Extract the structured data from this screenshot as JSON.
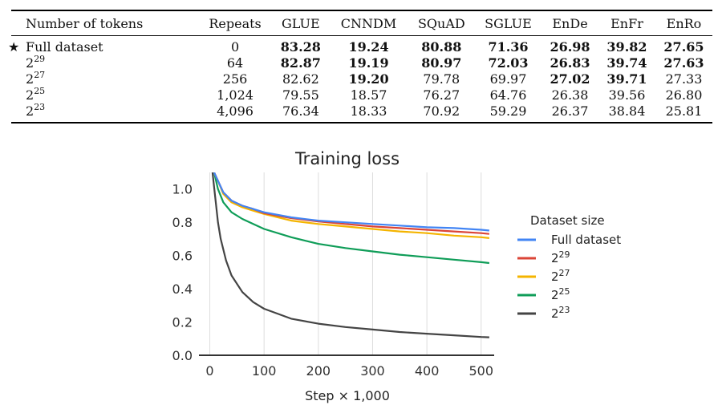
{
  "table": {
    "headers": [
      "Number of tokens",
      "Repeats",
      "GLUE",
      "CNNDM",
      "SQuAD",
      "SGLUE",
      "EnDe",
      "EnFr",
      "EnRo"
    ],
    "rows": [
      {
        "star": "★",
        "label": "Full dataset",
        "base": "",
        "exp": "",
        "values": [
          "0",
          "83.28",
          "19.24",
          "80.88",
          "71.36",
          "26.98",
          "39.82",
          "27.65"
        ],
        "bold": [
          false,
          true,
          true,
          true,
          true,
          true,
          true,
          true
        ]
      },
      {
        "star": "",
        "label": "",
        "base": "2",
        "exp": "29",
        "values": [
          "64",
          "82.87",
          "19.19",
          "80.97",
          "72.03",
          "26.83",
          "39.74",
          "27.63"
        ],
        "bold": [
          false,
          true,
          true,
          true,
          true,
          true,
          true,
          true
        ]
      },
      {
        "star": "",
        "label": "",
        "base": "2",
        "exp": "27",
        "values": [
          "256",
          "82.62",
          "19.20",
          "79.78",
          "69.97",
          "27.02",
          "39.71",
          "27.33"
        ],
        "bold": [
          false,
          false,
          true,
          false,
          false,
          true,
          true,
          false
        ]
      },
      {
        "star": "",
        "label": "",
        "base": "2",
        "exp": "25",
        "values": [
          "1,024",
          "79.55",
          "18.57",
          "76.27",
          "64.76",
          "26.38",
          "39.56",
          "26.80"
        ],
        "bold": [
          false,
          false,
          false,
          false,
          false,
          false,
          false,
          false
        ]
      },
      {
        "star": "",
        "label": "",
        "base": "2",
        "exp": "23",
        "values": [
          "4,096",
          "76.34",
          "18.33",
          "70.92",
          "59.29",
          "26.37",
          "38.84",
          "25.81"
        ],
        "bold": [
          false,
          false,
          false,
          false,
          false,
          false,
          false,
          false
        ]
      }
    ]
  },
  "chart_data": {
    "type": "line",
    "title": "Training loss",
    "xlabel": "Step × 1,000",
    "ylabel": "",
    "xlim": [
      -20,
      524
    ],
    "ylim": [
      0,
      1.1
    ],
    "xticks": [
      0,
      100,
      200,
      300,
      400,
      500
    ],
    "yticks": [
      0.0,
      0.2,
      0.4,
      0.6,
      0.8,
      1.0
    ],
    "grid": "vertical",
    "legend": {
      "title": "Dataset size",
      "placement": "right"
    },
    "series": [
      {
        "name": "Full dataset",
        "base": "",
        "exp": "",
        "color": "#4285f4",
        "points": [
          [
            8,
            1.1
          ],
          [
            15,
            1.05
          ],
          [
            25,
            0.98
          ],
          [
            40,
            0.93
          ],
          [
            60,
            0.9
          ],
          [
            80,
            0.88
          ],
          [
            100,
            0.86
          ],
          [
            150,
            0.83
          ],
          [
            200,
            0.81
          ],
          [
            250,
            0.8
          ],
          [
            300,
            0.79
          ],
          [
            350,
            0.78
          ],
          [
            400,
            0.77
          ],
          [
            450,
            0.765
          ],
          [
            500,
            0.755
          ],
          [
            515,
            0.75
          ]
        ]
      },
      {
        "name": "",
        "base": "2",
        "exp": "29",
        "color": "#db4437",
        "points": [
          [
            8,
            1.1
          ],
          [
            15,
            1.05
          ],
          [
            25,
            0.98
          ],
          [
            40,
            0.93
          ],
          [
            60,
            0.9
          ],
          [
            80,
            0.88
          ],
          [
            100,
            0.855
          ],
          [
            150,
            0.825
          ],
          [
            200,
            0.805
          ],
          [
            250,
            0.79
          ],
          [
            300,
            0.775
          ],
          [
            350,
            0.765
          ],
          [
            400,
            0.755
          ],
          [
            450,
            0.745
          ],
          [
            500,
            0.735
          ],
          [
            515,
            0.73
          ]
        ]
      },
      {
        "name": "",
        "base": "2",
        "exp": "27",
        "color": "#f4b400",
        "points": [
          [
            8,
            1.1
          ],
          [
            15,
            1.05
          ],
          [
            25,
            0.97
          ],
          [
            40,
            0.92
          ],
          [
            60,
            0.89
          ],
          [
            80,
            0.87
          ],
          [
            100,
            0.85
          ],
          [
            150,
            0.81
          ],
          [
            200,
            0.79
          ],
          [
            250,
            0.775
          ],
          [
            300,
            0.76
          ],
          [
            350,
            0.745
          ],
          [
            400,
            0.735
          ],
          [
            450,
            0.72
          ],
          [
            500,
            0.71
          ],
          [
            515,
            0.705
          ]
        ]
      },
      {
        "name": "",
        "base": "2",
        "exp": "25",
        "color": "#0f9d58",
        "points": [
          [
            8,
            1.1
          ],
          [
            15,
            1.0
          ],
          [
            25,
            0.92
          ],
          [
            40,
            0.86
          ],
          [
            60,
            0.82
          ],
          [
            80,
            0.79
          ],
          [
            100,
            0.76
          ],
          [
            150,
            0.71
          ],
          [
            200,
            0.67
          ],
          [
            250,
            0.645
          ],
          [
            300,
            0.625
          ],
          [
            350,
            0.605
          ],
          [
            400,
            0.59
          ],
          [
            450,
            0.575
          ],
          [
            500,
            0.56
          ],
          [
            515,
            0.555
          ]
        ]
      },
      {
        "name": "",
        "base": "2",
        "exp": "23",
        "color": "#444444",
        "points": [
          [
            5,
            1.1
          ],
          [
            10,
            0.95
          ],
          [
            15,
            0.8
          ],
          [
            20,
            0.7
          ],
          [
            30,
            0.57
          ],
          [
            40,
            0.48
          ],
          [
            60,
            0.38
          ],
          [
            80,
            0.32
          ],
          [
            100,
            0.28
          ],
          [
            150,
            0.22
          ],
          [
            200,
            0.19
          ],
          [
            250,
            0.17
          ],
          [
            300,
            0.155
          ],
          [
            350,
            0.14
          ],
          [
            400,
            0.13
          ],
          [
            450,
            0.12
          ],
          [
            500,
            0.11
          ],
          [
            515,
            0.108
          ]
        ]
      }
    ]
  }
}
